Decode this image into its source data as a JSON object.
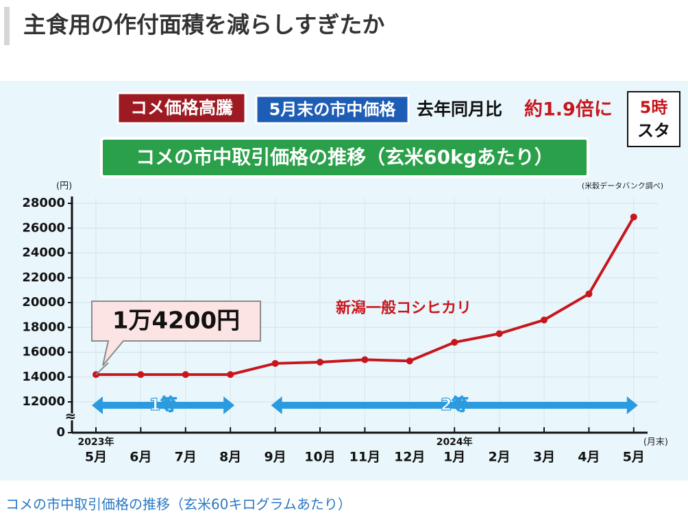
{
  "heading": "主食用の作付面積を減らしすぎたか",
  "caption": "コメの市中取引価格の推移（玄米60キログラムあたり）",
  "banner": {
    "tag": "コメ価格高騰",
    "sub": "5月末の市中価格",
    "compare": "去年同月比",
    "ratio": "約1.9倍に",
    "logo_top": "5時",
    "logo_bottom": "スタ"
  },
  "chart_data": {
    "type": "line",
    "title": "コメの市中取引価格の推移（玄米60kgあたり）",
    "y_unit": "(円)",
    "x_unit": "(月末)",
    "source": "(米穀データバンク調べ)",
    "categories": [
      "5月",
      "6月",
      "7月",
      "8月",
      "9月",
      "10月",
      "11月",
      "12月",
      "1月",
      "2月",
      "3月",
      "4月",
      "5月"
    ],
    "years": [
      "2023年",
      null,
      null,
      null,
      null,
      null,
      null,
      null,
      "2024年",
      null,
      null,
      null,
      null
    ],
    "series": [
      {
        "name": "新潟一般コシヒカリ",
        "color": "#c8161d",
        "values": [
          14200,
          14200,
          14200,
          14200,
          15100,
          15200,
          15400,
          15300,
          16800,
          17500,
          18600,
          20700,
          26900
        ]
      }
    ],
    "annotation": "1万4200円",
    "ylim": [
      0,
      28000
    ],
    "yticks": [
      0,
      12000,
      14000,
      16000,
      18000,
      20000,
      22000,
      24000,
      26000,
      28000
    ],
    "axis_break": "≈",
    "grid": true,
    "grades": [
      {
        "label": "1等",
        "from": 0,
        "to": 3,
        "color": "#2b9be0"
      },
      {
        "label": "2等",
        "from": 4,
        "to": 12,
        "color": "#2b9be0"
      }
    ]
  }
}
